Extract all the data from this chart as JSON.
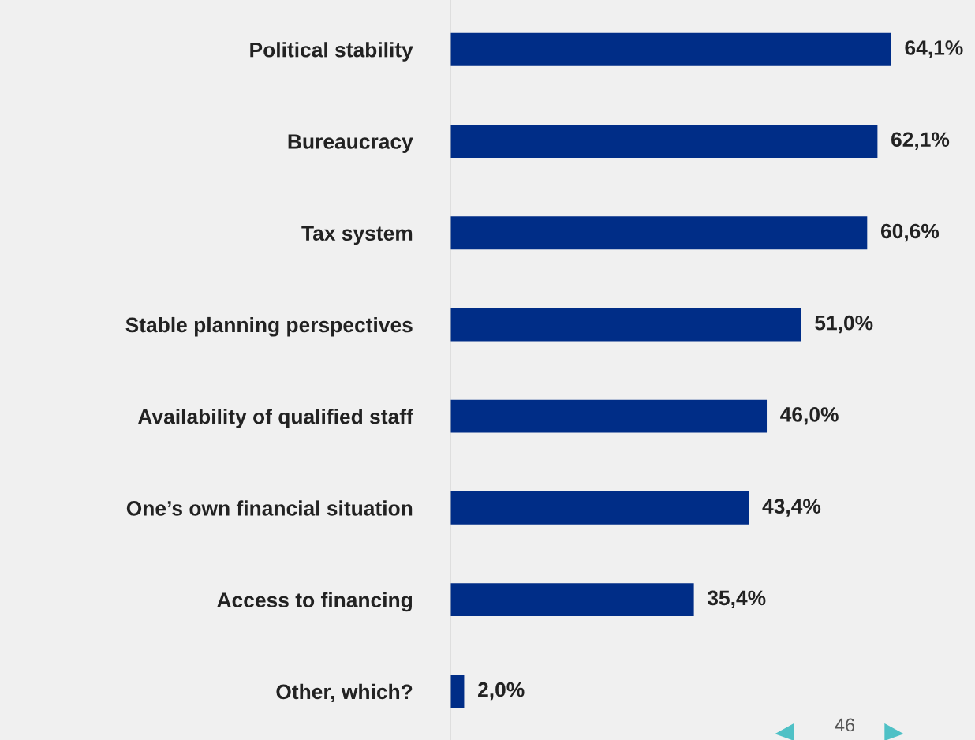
{
  "chart_data": {
    "type": "bar",
    "orientation": "horizontal",
    "categories": [
      "Political stability",
      "Bureaucracy",
      "Tax system",
      "Stable planning perspectives",
      "Availability of qualified staff",
      "One’s own financial situation",
      "Access to financing",
      "Other, which?"
    ],
    "values": [
      64.1,
      62.1,
      60.6,
      51.0,
      46.0,
      43.4,
      35.4,
      2.0
    ],
    "value_labels": [
      "64,1%",
      "62,1%",
      "60,6%",
      "51,0%",
      "46,0%",
      "43,4%",
      "35,4%",
      "2,0%"
    ],
    "color": "#002d87",
    "grid": false,
    "legend": false,
    "tick_labels": "y",
    "annotations": [
      "46"
    ]
  }
}
